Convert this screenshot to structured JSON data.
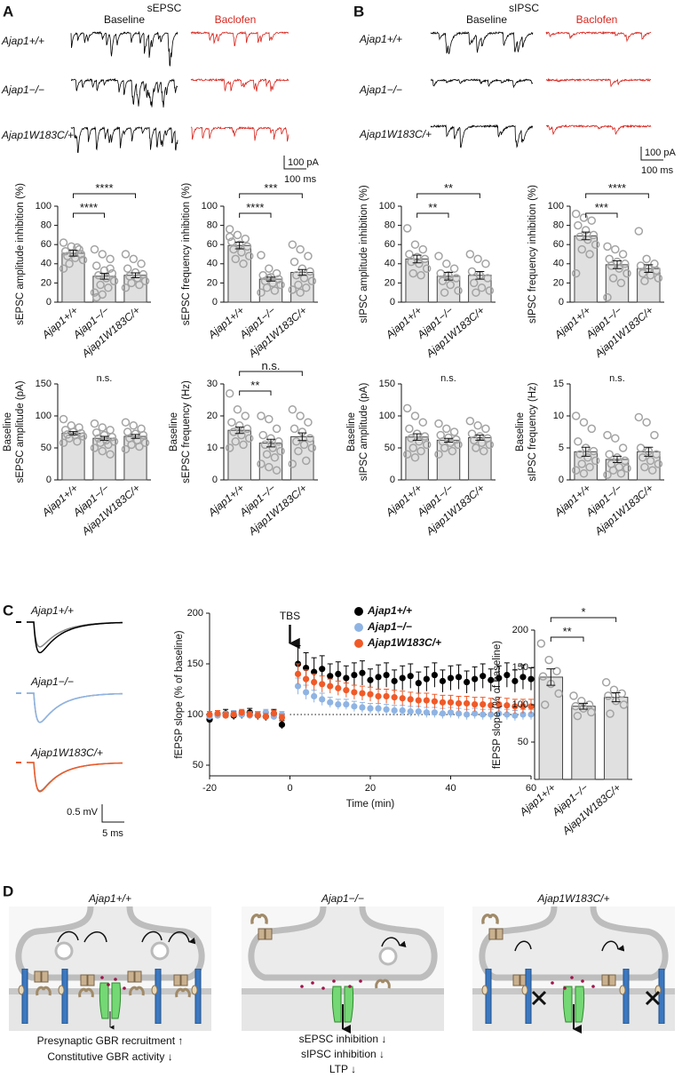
{
  "panel_a": {
    "label": "A",
    "title": "sEPSC",
    "conditions": [
      "Baseline",
      "Baclofen"
    ],
    "genotypes": [
      "Ajap1+/+",
      "Ajap1−/−",
      "Ajap1W183C/+"
    ],
    "scale": [
      "100 pA",
      "100 ms"
    ]
  },
  "panel_b": {
    "label": "B",
    "title": "sIPSC",
    "conditions": [
      "Baseline",
      "Baclofen"
    ],
    "genotypes": [
      "Ajap1+/+",
      "Ajap1−/−",
      "Ajap1W183C/+"
    ],
    "scale": [
      "100 pA",
      "100 ms"
    ]
  },
  "panel_c": {
    "label": "C",
    "genotypes": [
      "Ajap1+/+",
      "Ajap1−/−",
      "Ajap1W183C/+"
    ],
    "scale": [
      "0.5 mV",
      "5 ms"
    ]
  },
  "panel_d": {
    "label": "D",
    "titles": [
      "Ajap1+/+",
      "Ajap1−/−",
      "Ajap1W183C/+"
    ],
    "notes_left": [
      "Presynaptic GBR recruitment ↑",
      "Constitutive GBR activity ↓"
    ],
    "notes_middle": [
      "sEPSC inhibition ↓",
      "sIPSC inhibition ↓",
      "LTP ↓"
    ]
  },
  "chart_data": [
    {
      "type": "bar",
      "ylabel": [
        "sEPSC amplitude inhibition (%)"
      ],
      "categories": [
        "Ajap1+/+",
        "Ajap1−/−",
        "Ajap1W183C/+"
      ],
      "values": [
        51,
        27,
        28
      ],
      "errors": [
        3,
        3,
        2.5
      ],
      "points": [
        [
          62,
          58,
          55,
          53,
          51,
          50,
          48,
          46,
          44,
          40,
          57,
          35
        ],
        [
          55,
          50,
          45,
          38,
          33,
          30,
          28,
          25,
          22,
          18,
          15,
          10,
          8,
          35,
          5
        ],
        [
          50,
          45,
          40,
          35,
          31,
          29,
          27,
          25,
          22,
          20,
          18,
          15
        ]
      ],
      "color": "#e0e0e0",
      "ylim": [
        0,
        100
      ],
      "yticks": [
        0,
        20,
        40,
        60,
        80,
        100
      ],
      "comparisons": [
        {
          "from": "Ajap1+/+",
          "to": "Ajap1−/−",
          "label": "****"
        },
        {
          "from": "Ajap1+/+",
          "to": "Ajap1W183C/+",
          "label": "****"
        }
      ]
    },
    {
      "type": "bar",
      "ylabel": [
        "sEPSC frequency inhibition (%)"
      ],
      "categories": [
        "Ajap1+/+",
        "Ajap1−/−",
        "Ajap1W183C/+"
      ],
      "values": [
        59,
        24,
        31
      ],
      "errors": [
        3.5,
        2,
        3
      ],
      "points": [
        [
          76,
          70,
          66,
          63,
          60,
          58,
          55,
          52,
          48,
          45,
          40,
          68
        ],
        [
          49,
          35,
          30,
          28,
          26,
          24,
          22,
          20,
          18,
          15,
          12,
          10,
          25
        ],
        [
          60,
          55,
          48,
          42,
          35,
          32,
          28,
          25,
          22,
          18,
          15,
          13,
          10
        ]
      ],
      "color": "#e0e0e0",
      "ylim": [
        0,
        100
      ],
      "yticks": [
        0,
        20,
        40,
        60,
        80,
        100
      ],
      "comparisons": [
        {
          "from": "Ajap1+/+",
          "to": "Ajap1−/−",
          "label": "****"
        },
        {
          "from": "Ajap1+/+",
          "to": "Ajap1W183C/+",
          "label": "***"
        }
      ]
    },
    {
      "type": "bar",
      "ylabel": [
        "Baseline",
        "sEPSC amplitude (pA)"
      ],
      "categories": [
        "Ajap1+/+",
        "Ajap1−/−",
        "Ajap1W183C/+"
      ],
      "values": [
        73,
        65,
        68
      ],
      "errors": [
        2.5,
        3,
        3
      ],
      "points": [
        [
          95,
          85,
          82,
          78,
          75,
          73,
          71,
          70,
          68,
          65,
          60,
          58
        ],
        [
          88,
          82,
          78,
          74,
          70,
          67,
          65,
          62,
          60,
          58,
          55,
          50,
          45,
          40
        ],
        [
          90,
          85,
          80,
          75,
          72,
          70,
          65,
          62,
          58,
          55,
          52,
          48
        ]
      ],
      "color": "#e0e0e0",
      "ylim": [
        0,
        150
      ],
      "yticks": [
        0,
        50,
        100,
        150
      ],
      "annotation": "n.s."
    },
    {
      "type": "bar",
      "ylabel": [
        "Baseline",
        "sEPSC frequency (Hz)"
      ],
      "categories": [
        "Ajap1+/+",
        "Ajap1−/−",
        "Ajap1W183C/+"
      ],
      "values": [
        15.5,
        11.5,
        13.5
      ],
      "errors": [
        1,
        1.2,
        1.2
      ],
      "points": [
        [
          27,
          22,
          20,
          18,
          17,
          16,
          15,
          14,
          13,
          12,
          11,
          10
        ],
        [
          20,
          19,
          16,
          14,
          13,
          12,
          11,
          10,
          9,
          8,
          7,
          5,
          4,
          3
        ],
        [
          22,
          20,
          18,
          16,
          15,
          13,
          12,
          11,
          10,
          9,
          6,
          5
        ]
      ],
      "color": "#e0e0e0",
      "ylim": [
        0,
        30
      ],
      "yticks": [
        0,
        10,
        20,
        30
      ],
      "comparisons": [
        {
          "from": "Ajap1+/+",
          "to": "Ajap1−/−",
          "label": "**"
        },
        {
          "from": "Ajap1+/+",
          "to": "Ajap1W183C/+",
          "label": "n.s."
        }
      ]
    },
    {
      "type": "bar",
      "ylabel": [
        "sIPSC amplitude inhibition (%)"
      ],
      "categories": [
        "Ajap1+/+",
        "Ajap1−/−",
        "Ajap1W183C/+"
      ],
      "values": [
        45,
        27,
        28
      ],
      "errors": [
        4,
        4,
        4
      ],
      "points": [
        [
          77,
          60,
          55,
          50,
          47,
          45,
          42,
          40,
          35,
          30,
          28
        ],
        [
          48,
          40,
          35,
          30,
          28,
          25,
          22,
          18,
          12,
          10
        ],
        [
          50,
          45,
          40,
          32,
          28,
          25,
          20,
          15,
          12,
          10
        ]
      ],
      "color": "#e0e0e0",
      "ylim": [
        0,
        100
      ],
      "yticks": [
        0,
        20,
        40,
        60,
        80,
        100
      ],
      "comparisons": [
        {
          "from": "Ajap1+/+",
          "to": "Ajap1−/−",
          "label": "**"
        },
        {
          "from": "Ajap1+/+",
          "to": "Ajap1W183C/+",
          "label": "**"
        }
      ]
    },
    {
      "type": "bar",
      "ylabel": [
        "sIPSC frequency inhibition (%)"
      ],
      "categories": [
        "Ajap1+/+",
        "Ajap1−/−",
        "Ajap1W183C/+"
      ],
      "values": [
        69,
        39,
        35
      ],
      "errors": [
        4,
        4,
        4
      ],
      "points": [
        [
          92,
          88,
          85,
          80,
          75,
          70,
          68,
          65,
          60,
          55,
          50,
          30
        ],
        [
          58,
          55,
          50,
          45,
          42,
          40,
          38,
          35,
          30,
          25,
          20,
          5
        ],
        [
          74,
          45,
          40,
          38,
          35,
          33,
          30,
          28,
          25,
          22
        ]
      ],
      "color": "#e0e0e0",
      "ylim": [
        0,
        100
      ],
      "yticks": [
        0,
        20,
        40,
        60,
        80,
        100
      ],
      "comparisons": [
        {
          "from": "Ajap1+/+",
          "to": "Ajap1−/−",
          "label": "***"
        },
        {
          "from": "Ajap1+/+",
          "to": "Ajap1W183C/+",
          "label": "****"
        }
      ]
    },
    {
      "type": "bar",
      "ylabel": [
        "Baseline",
        "sIPSC amplitude (pA)"
      ],
      "categories": [
        "Ajap1+/+",
        "Ajap1−/−",
        "Ajap1W183C/+"
      ],
      "values": [
        67,
        62,
        66
      ],
      "errors": [
        5,
        3,
        4
      ],
      "points": [
        [
          112,
          100,
          90,
          80,
          72,
          68,
          65,
          60,
          55,
          50,
          45,
          40,
          35
        ],
        [
          88,
          80,
          75,
          70,
          66,
          63,
          60,
          58,
          55,
          50,
          45,
          40
        ],
        [
          92,
          85,
          80,
          72,
          68,
          65,
          62,
          58,
          55,
          50,
          45
        ]
      ],
      "color": "#e0e0e0",
      "ylim": [
        0,
        150
      ],
      "yticks": [
        0,
        50,
        100,
        150
      ],
      "annotation": "n.s."
    },
    {
      "type": "bar",
      "ylabel": [
        "Baseline",
        "sIPSC frequency (Hz)"
      ],
      "categories": [
        "Ajap1+/+",
        "Ajap1−/−",
        "Ajap1W183C/+"
      ],
      "values": [
        4.4,
        3.2,
        4.4
      ],
      "errors": [
        0.7,
        0.5,
        0.7
      ],
      "points": [
        [
          10,
          9,
          8,
          6,
          5,
          4.5,
          4,
          3.5,
          3,
          2.5,
          2,
          1.5,
          1
        ],
        [
          7,
          6.5,
          5,
          4,
          3.5,
          3,
          2.5,
          2,
          1.8,
          1.5,
          1,
          0.8
        ],
        [
          9.8,
          9,
          7,
          5,
          4.5,
          4,
          3.5,
          3,
          2.5,
          2,
          1.5
        ]
      ],
      "color": "#e0e0e0",
      "ylim": [
        0,
        15
      ],
      "yticks": [
        0,
        5,
        10,
        15
      ],
      "annotation": "n.s."
    },
    {
      "type": "line",
      "ylabel": "fEPSP slope (% of baseline)",
      "xlabel": "Time (min)",
      "x": [
        -20,
        -18,
        -16,
        -14,
        -12,
        -10,
        -8,
        -6,
        -4,
        -2,
        2,
        4,
        6,
        8,
        10,
        12,
        14,
        16,
        18,
        20,
        22,
        24,
        26,
        28,
        30,
        32,
        34,
        36,
        38,
        40,
        42,
        44,
        46,
        48,
        50,
        52,
        54,
        56,
        58,
        60
      ],
      "series": [
        {
          "name": "Ajap1+/+",
          "color": "#000000",
          "values": [
            95,
            100,
            101,
            99,
            100,
            102,
            99,
            98,
            101,
            90,
            150,
            146,
            142,
            145,
            138,
            140,
            136,
            139,
            141,
            134,
            137,
            139,
            133,
            136,
            138,
            131,
            135,
            139,
            133,
            136,
            137,
            132,
            135,
            138,
            134,
            136,
            139,
            133,
            137,
            135
          ],
          "errors": [
            4,
            4,
            4,
            4,
            4,
            4,
            4,
            4,
            4,
            4,
            18,
            15,
            14,
            13,
            12,
            12,
            12,
            12,
            12,
            11,
            12,
            12,
            11,
            12,
            12,
            11,
            12,
            12,
            11,
            12,
            12,
            11,
            12,
            12,
            11,
            12,
            12,
            11,
            12,
            11
          ]
        },
        {
          "name": "Ajap1−/−",
          "color": "#8fb4e3",
          "values": [
            98,
            99,
            100,
            101,
            100,
            99,
            100,
            102,
            98,
            100,
            128,
            122,
            118,
            115,
            112,
            110,
            110,
            108,
            107,
            106,
            106,
            105,
            104,
            104,
            103,
            103,
            102,
            102,
            101,
            102,
            101,
            100,
            101,
            100,
            100,
            101,
            100,
            99,
            100,
            100
          ],
          "errors": [
            3,
            3,
            3,
            3,
            3,
            3,
            3,
            3,
            3,
            3,
            8,
            7,
            6,
            6,
            5,
            5,
            5,
            5,
            5,
            5,
            5,
            5,
            5,
            5,
            5,
            5,
            5,
            5,
            5,
            5,
            5,
            5,
            5,
            5,
            5,
            5,
            5,
            5,
            5,
            5
          ]
        },
        {
          "name": "Ajap1W183C/+",
          "color": "#f05a28",
          "values": [
            100,
            101,
            99,
            100,
            102,
            100,
            99,
            98,
            101,
            97,
            140,
            135,
            132,
            130,
            128,
            126,
            124,
            122,
            121,
            120,
            118,
            118,
            117,
            116,
            115,
            114,
            114,
            113,
            112,
            112,
            111,
            111,
            110,
            110,
            109,
            110,
            109,
            108,
            108,
            108
          ],
          "errors": [
            3,
            3,
            3,
            3,
            3,
            3,
            3,
            3,
            3,
            3,
            10,
            9,
            8,
            8,
            7,
            7,
            7,
            7,
            7,
            7,
            7,
            7,
            7,
            7,
            7,
            7,
            7,
            7,
            7,
            7,
            7,
            7,
            7,
            7,
            7,
            7,
            7,
            7,
            7,
            7
          ]
        }
      ],
      "xlim": [
        -20,
        60
      ],
      "xticks": [
        -20,
        0,
        20,
        40,
        60
      ],
      "ylim": [
        50,
        200
      ],
      "yticks": [
        50,
        100,
        150,
        200
      ],
      "reference_line": 100,
      "event": {
        "label": "TBS",
        "x": 0
      }
    },
    {
      "type": "bar",
      "ylabel": [
        "fEPSP slope (% of baseline)"
      ],
      "categories": [
        "Ajap1+/+",
        "Ajap1−/−",
        "Ajap1W183C/+"
      ],
      "values": [
        137,
        98,
        110
      ],
      "errors": [
        11,
        4,
        6
      ],
      "points": [
        [
          182,
          160,
          145,
          138,
          128,
          115,
          100
        ],
        [
          112,
          105,
          100,
          98,
          95,
          90,
          85
        ],
        [
          130,
          120,
          115,
          112,
          105,
          100,
          88
        ]
      ],
      "color": "#e0e0e0",
      "ylim": [
        0,
        200
      ],
      "yticks": [
        50,
        100,
        150,
        200
      ],
      "comparisons": [
        {
          "from": "Ajap1+/+",
          "to": "Ajap1−/−",
          "label": "**"
        },
        {
          "from": "Ajap1+/+",
          "to": "Ajap1W183C/+",
          "label": "*"
        }
      ]
    }
  ]
}
